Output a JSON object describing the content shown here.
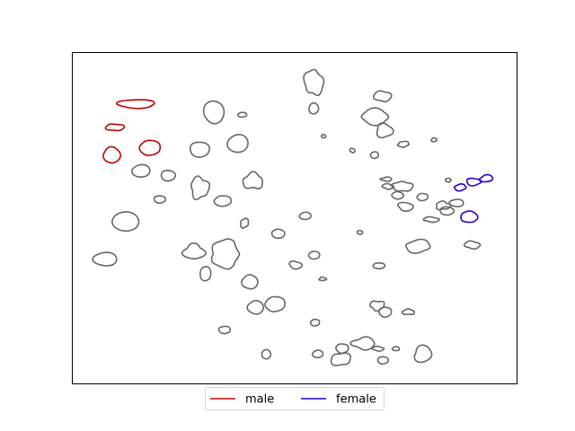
{
  "chart_data": {
    "type": "scatter",
    "description_style": "closed contour outlines",
    "title": "",
    "xlabel": "",
    "ylabel": "",
    "xlim": [
      0,
      100
    ],
    "ylim": [
      0,
      100
    ],
    "axes_ticks": false,
    "grid": false,
    "legend": {
      "placement": "bottom-center-outside",
      "ncol": 2,
      "entries": [
        {
          "label": "male",
          "color": "#c00000"
        },
        {
          "label": "female",
          "color": "#2200dd"
        }
      ]
    },
    "series": [
      {
        "name": "male",
        "color": "#c00000",
        "contours": [
          {
            "cx": 14.3,
            "cy": 84.6,
            "rx": 4.2,
            "ry": 1.3,
            "shape": "blob"
          },
          {
            "cx": 9.5,
            "cy": 77.5,
            "rx": 1.9,
            "ry": 1.1,
            "shape": "blob"
          },
          {
            "cx": 8.8,
            "cy": 69.1,
            "rx": 1.9,
            "ry": 2.4,
            "shape": "round"
          },
          {
            "cx": 17.4,
            "cy": 71.3,
            "rx": 2.3,
            "ry": 2.3,
            "shape": "round"
          }
        ]
      },
      {
        "name": "female",
        "color": "#2200dd",
        "contours": [
          {
            "cx": 87.3,
            "cy": 59.3,
            "rx": 1.4,
            "ry": 0.9,
            "shape": "blob"
          },
          {
            "cx": 90.3,
            "cy": 61.0,
            "rx": 1.6,
            "ry": 1.1,
            "shape": "blob"
          },
          {
            "cx": 93.2,
            "cy": 62.0,
            "rx": 1.5,
            "ry": 1.0,
            "shape": "blob"
          },
          {
            "cx": 89.3,
            "cy": 50.4,
            "rx": 1.9,
            "ry": 1.7,
            "shape": "round"
          }
        ]
      },
      {
        "name": "",
        "color": "#666666",
        "contours": [
          {
            "cx": 54.3,
            "cy": 91.1,
            "rx": 2.0,
            "ry": 4.0,
            "shape": "blob"
          },
          {
            "cx": 69.8,
            "cy": 86.9,
            "rx": 1.8,
            "ry": 1.7,
            "shape": "blob"
          },
          {
            "cx": 54.3,
            "cy": 83.2,
            "rx": 1.1,
            "ry": 1.6,
            "shape": "round"
          },
          {
            "cx": 31.8,
            "cy": 82.1,
            "rx": 2.3,
            "ry": 3.4,
            "shape": "round"
          },
          {
            "cx": 38.2,
            "cy": 81.3,
            "rx": 1.0,
            "ry": 0.7,
            "shape": "round"
          },
          {
            "cx": 68.1,
            "cy": 80.7,
            "rx": 3.2,
            "ry": 2.2,
            "shape": "blob"
          },
          {
            "cx": 70.2,
            "cy": 76.5,
            "rx": 1.8,
            "ry": 2.1,
            "shape": "blob"
          },
          {
            "cx": 56.5,
            "cy": 74.8,
            "rx": 0.5,
            "ry": 0.5,
            "shape": "round"
          },
          {
            "cx": 74.5,
            "cy": 72.4,
            "rx": 1.3,
            "ry": 0.8,
            "shape": "blob"
          },
          {
            "cx": 81.4,
            "cy": 73.7,
            "rx": 0.7,
            "ry": 0.5,
            "shape": "blob"
          },
          {
            "cx": 37.2,
            "cy": 72.6,
            "rx": 2.3,
            "ry": 2.7,
            "shape": "round"
          },
          {
            "cx": 28.6,
            "cy": 70.8,
            "rx": 2.2,
            "ry": 2.3,
            "shape": "round"
          },
          {
            "cx": 63.0,
            "cy": 70.5,
            "rx": 0.6,
            "ry": 0.6,
            "shape": "blob"
          },
          {
            "cx": 68.0,
            "cy": 69.1,
            "rx": 0.9,
            "ry": 1.0,
            "shape": "round"
          },
          {
            "cx": 15.4,
            "cy": 64.3,
            "rx": 2.0,
            "ry": 1.9,
            "shape": "round"
          },
          {
            "cx": 21.5,
            "cy": 62.9,
            "rx": 1.6,
            "ry": 1.6,
            "shape": "round"
          },
          {
            "cx": 28.6,
            "cy": 59.2,
            "rx": 2.0,
            "ry": 3.2,
            "shape": "blob"
          },
          {
            "cx": 40.6,
            "cy": 61.2,
            "rx": 2.2,
            "ry": 2.4,
            "shape": "blob"
          },
          {
            "cx": 70.7,
            "cy": 61.8,
            "rx": 1.2,
            "ry": 0.6,
            "shape": "blob"
          },
          {
            "cx": 71.0,
            "cy": 59.6,
            "rx": 1.2,
            "ry": 0.8,
            "shape": "blob"
          },
          {
            "cx": 74.3,
            "cy": 59.6,
            "rx": 2.1,
            "ry": 1.6,
            "shape": "blob"
          },
          {
            "cx": 84.6,
            "cy": 61.5,
            "rx": 0.7,
            "ry": 0.5,
            "shape": "blob"
          },
          {
            "cx": 73.2,
            "cy": 56.9,
            "rx": 1.3,
            "ry": 1.1,
            "shape": "round"
          },
          {
            "cx": 78.8,
            "cy": 56.4,
            "rx": 1.2,
            "ry": 1.1,
            "shape": "round"
          },
          {
            "cx": 19.6,
            "cy": 55.7,
            "rx": 1.3,
            "ry": 1.1,
            "shape": "round"
          },
          {
            "cx": 33.8,
            "cy": 55.2,
            "rx": 1.9,
            "ry": 1.6,
            "shape": "round"
          },
          {
            "cx": 75.0,
            "cy": 53.5,
            "rx": 1.8,
            "ry": 1.2,
            "shape": "blob"
          },
          {
            "cx": 83.4,
            "cy": 53.8,
            "rx": 1.6,
            "ry": 1.2,
            "shape": "blob"
          },
          {
            "cx": 86.5,
            "cy": 54.6,
            "rx": 1.6,
            "ry": 1.1,
            "shape": "blob"
          },
          {
            "cx": 84.3,
            "cy": 52.2,
            "rx": 1.6,
            "ry": 1.2,
            "shape": "round"
          },
          {
            "cx": 80.8,
            "cy": 49.6,
            "rx": 1.6,
            "ry": 0.8,
            "shape": "blob"
          },
          {
            "cx": 11.9,
            "cy": 49.0,
            "rx": 3.0,
            "ry": 2.9,
            "shape": "round"
          },
          {
            "cx": 52.4,
            "cy": 50.7,
            "rx": 1.3,
            "ry": 1.1,
            "shape": "round"
          },
          {
            "cx": 38.7,
            "cy": 48.5,
            "rx": 0.9,
            "ry": 1.4,
            "shape": "blob"
          },
          {
            "cx": 46.3,
            "cy": 45.3,
            "rx": 1.4,
            "ry": 1.4,
            "shape": "round"
          },
          {
            "cx": 64.7,
            "cy": 45.7,
            "rx": 0.6,
            "ry": 0.6,
            "shape": "round"
          },
          {
            "cx": 77.8,
            "cy": 41.5,
            "rx": 2.9,
            "ry": 1.8,
            "shape": "blob"
          },
          {
            "cx": 90.0,
            "cy": 41.9,
            "rx": 1.6,
            "ry": 1.2,
            "shape": "blob"
          },
          {
            "cx": 27.3,
            "cy": 39.8,
            "rx": 2.4,
            "ry": 2.2,
            "shape": "blob"
          },
          {
            "cx": 34.3,
            "cy": 39.2,
            "rx": 3.4,
            "ry": 3.9,
            "shape": "blob"
          },
          {
            "cx": 7.3,
            "cy": 37.6,
            "rx": 2.7,
            "ry": 2.0,
            "shape": "blob"
          },
          {
            "cx": 54.4,
            "cy": 38.8,
            "rx": 1.2,
            "ry": 1.2,
            "shape": "round"
          },
          {
            "cx": 50.2,
            "cy": 35.8,
            "rx": 1.3,
            "ry": 1.2,
            "shape": "blob"
          },
          {
            "cx": 69.0,
            "cy": 35.6,
            "rx": 1.3,
            "ry": 0.9,
            "shape": "round"
          },
          {
            "cx": 29.9,
            "cy": 33.2,
            "rx": 1.2,
            "ry": 2.2,
            "shape": "round"
          },
          {
            "cx": 39.9,
            "cy": 30.7,
            "rx": 1.8,
            "ry": 2.1,
            "shape": "round"
          },
          {
            "cx": 56.3,
            "cy": 31.6,
            "rx": 0.8,
            "ry": 0.5,
            "shape": "blob"
          },
          {
            "cx": 68.6,
            "cy": 23.6,
            "rx": 1.6,
            "ry": 1.4,
            "shape": "blob"
          },
          {
            "cx": 70.4,
            "cy": 21.6,
            "rx": 1.4,
            "ry": 1.5,
            "shape": "round"
          },
          {
            "cx": 45.6,
            "cy": 24.0,
            "rx": 2.2,
            "ry": 2.3,
            "shape": "round"
          },
          {
            "cx": 41.2,
            "cy": 23.0,
            "rx": 1.8,
            "ry": 2.0,
            "shape": "round"
          },
          {
            "cx": 75.6,
            "cy": 21.6,
            "rx": 1.4,
            "ry": 0.8,
            "shape": "blob"
          },
          {
            "cx": 54.6,
            "cy": 18.4,
            "rx": 1.0,
            "ry": 1.0,
            "shape": "round"
          },
          {
            "cx": 34.2,
            "cy": 16.2,
            "rx": 1.3,
            "ry": 1.1,
            "shape": "round"
          },
          {
            "cx": 65.6,
            "cy": 12.1,
            "rx": 2.5,
            "ry": 1.8,
            "shape": "blob"
          },
          {
            "cx": 60.7,
            "cy": 10.6,
            "rx": 1.4,
            "ry": 1.4,
            "shape": "round"
          },
          {
            "cx": 68.8,
            "cy": 10.5,
            "rx": 1.2,
            "ry": 0.7,
            "shape": "blob"
          },
          {
            "cx": 72.8,
            "cy": 10.5,
            "rx": 0.8,
            "ry": 0.6,
            "shape": "blob"
          },
          {
            "cx": 78.9,
            "cy": 8.9,
            "rx": 2.1,
            "ry": 2.3,
            "shape": "blob"
          },
          {
            "cx": 55.2,
            "cy": 8.9,
            "rx": 1.2,
            "ry": 1.1,
            "shape": "round"
          },
          {
            "cx": 43.6,
            "cy": 8.8,
            "rx": 1.0,
            "ry": 1.4,
            "shape": "round"
          },
          {
            "cx": 60.4,
            "cy": 7.3,
            "rx": 2.1,
            "ry": 2.0,
            "shape": "blob"
          },
          {
            "cx": 69.9,
            "cy": 7.0,
            "rx": 1.2,
            "ry": 1.1,
            "shape": "round"
          }
        ]
      }
    ]
  }
}
